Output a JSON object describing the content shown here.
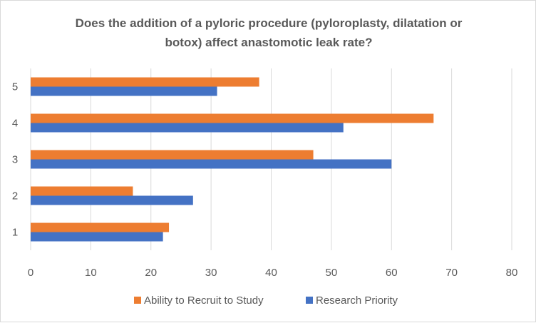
{
  "chart_data": {
    "type": "bar",
    "orientation": "horizontal",
    "title": "Does the addition of a pyloric procedure (pyloroplasty, dilatation or botox) affect anastomotic leak rate?",
    "title_lines": [
      "Does the addition of a pyloric procedure (pyloroplasty, dilatation or",
      "botox) affect anastomotic leak rate?"
    ],
    "categories": [
      "1",
      "2",
      "3",
      "4",
      "5"
    ],
    "series": [
      {
        "name": "Research Priority",
        "color": "#4472c4",
        "values": [
          22,
          27,
          60,
          52,
          31
        ]
      },
      {
        "name": "Ability to Recruit to Study",
        "color": "#ed7d31",
        "values": [
          23,
          17,
          47,
          67,
          38
        ]
      }
    ],
    "xlim": [
      0,
      80
    ],
    "x_ticks": [
      "0",
      "10",
      "20",
      "30",
      "40",
      "50",
      "60",
      "70",
      "80"
    ],
    "xlabel": "",
    "ylabel": "",
    "grid": "vertical",
    "legend_position": "bottom",
    "legend_order": [
      "Ability to Recruit to Study",
      "Research Priority"
    ]
  }
}
